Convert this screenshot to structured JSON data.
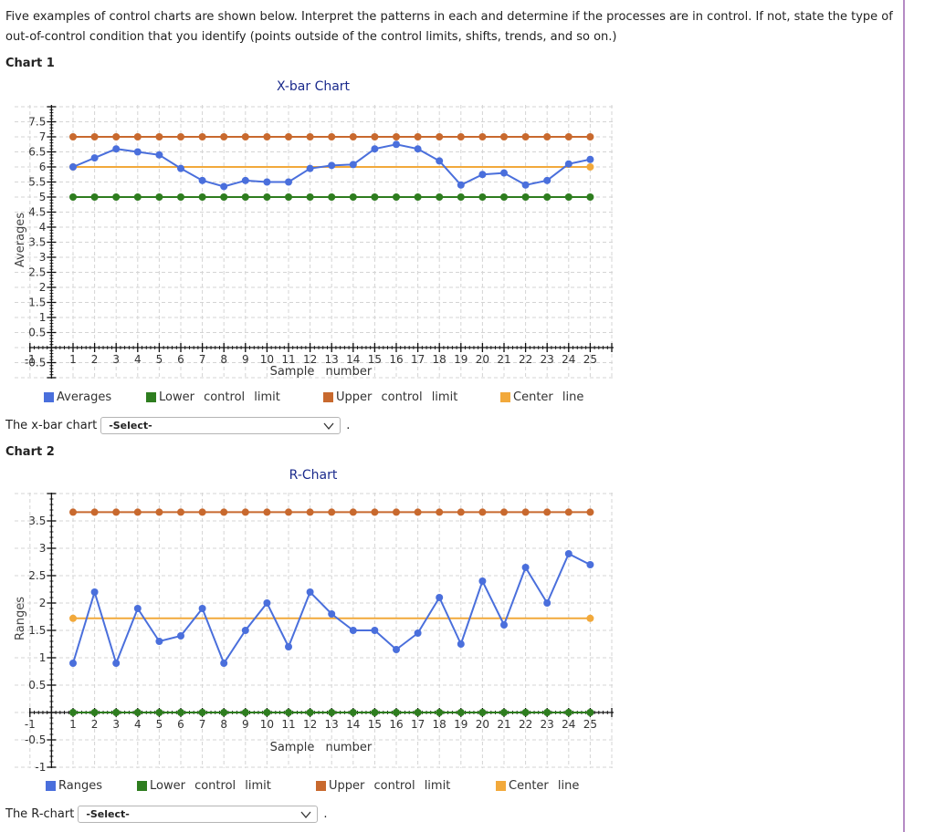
{
  "intro": {
    "text": "Five examples of control charts are shown below. Interpret the patterns in each and determine if the processes are in control. If not, state the type of out-of-control condition that you identify (points outside of the control limits, shifts, trends, and so on.)"
  },
  "chart1": {
    "heading": "Chart 1",
    "answer_prefix": "The x-bar chart",
    "select_value": "-Select-",
    "legend": [
      {
        "label": "Averages",
        "color": "#4a6fdc"
      },
      {
        "label": "Lower control limit",
        "color": "#2e7d1f"
      },
      {
        "label": "Upper control limit",
        "color": "#c8692e"
      },
      {
        "label": "Center line",
        "color": "#f2a93b"
      }
    ]
  },
  "chart2": {
    "heading": "Chart 2",
    "answer_prefix": "The R-chart",
    "select_value": "-Select-",
    "legend": [
      {
        "label": "Ranges",
        "color": "#4a6fdc"
      },
      {
        "label": "Lower control limit",
        "color": "#2e7d1f"
      },
      {
        "label": "Upper control limit",
        "color": "#c8692e"
      },
      {
        "label": "Center line",
        "color": "#f2a93b"
      }
    ]
  },
  "period": ".",
  "chart_data": [
    {
      "type": "line",
      "title": "X-bar Chart",
      "xlabel": "Sample number",
      "ylabel": "Averages",
      "x": [
        1,
        2,
        3,
        4,
        5,
        6,
        7,
        8,
        9,
        10,
        11,
        12,
        13,
        14,
        15,
        16,
        17,
        18,
        19,
        20,
        21,
        22,
        23,
        24,
        25
      ],
      "series": [
        {
          "name": "Averages",
          "color": "#4a6fdc",
          "values": [
            6.0,
            6.3,
            6.6,
            6.5,
            6.4,
            5.95,
            5.55,
            5.35,
            5.55,
            5.5,
            5.5,
            5.95,
            6.05,
            6.08,
            6.6,
            6.75,
            6.6,
            6.2,
            5.4,
            5.75,
            5.8,
            5.4,
            5.55,
            6.1,
            6.25
          ]
        },
        {
          "name": "Lower control limit",
          "color": "#2e7d1f",
          "values": [
            5,
            5,
            5,
            5,
            5,
            5,
            5,
            5,
            5,
            5,
            5,
            5,
            5,
            5,
            5,
            5,
            5,
            5,
            5,
            5,
            5,
            5,
            5,
            5,
            5
          ]
        },
        {
          "name": "Upper control limit",
          "color": "#c8692e",
          "values": [
            7,
            7,
            7,
            7,
            7,
            7,
            7,
            7,
            7,
            7,
            7,
            7,
            7,
            7,
            7,
            7,
            7,
            7,
            7,
            7,
            7,
            7,
            7,
            7,
            7
          ]
        },
        {
          "name": "Center line",
          "color": "#f2a93b",
          "values": [
            6,
            6,
            6,
            6,
            6,
            6,
            6,
            6,
            6,
            6,
            6,
            6,
            6,
            6,
            6,
            6,
            6,
            6,
            6,
            6,
            6,
            6,
            6,
            6,
            6
          ]
        }
      ],
      "xlim": [
        -1,
        26
      ],
      "ylim": [
        -1,
        8
      ],
      "yticks": [
        -0.5,
        0.5,
        1,
        1.5,
        2,
        2.5,
        3,
        3.5,
        4,
        4.5,
        5,
        5.5,
        6,
        6.5,
        7,
        7.5
      ],
      "xticks": [
        -1,
        1,
        2,
        3,
        4,
        5,
        6,
        7,
        8,
        9,
        10,
        11,
        12,
        13,
        14,
        15,
        16,
        17,
        18,
        19,
        20,
        21,
        22,
        23,
        24,
        25
      ],
      "grid": true,
      "legend_position": "bottom"
    },
    {
      "type": "line",
      "title": "R-Chart",
      "xlabel": "Sample number",
      "ylabel": "Ranges",
      "x": [
        1,
        2,
        3,
        4,
        5,
        6,
        7,
        8,
        9,
        10,
        11,
        12,
        13,
        14,
        15,
        16,
        17,
        18,
        19,
        20,
        21,
        22,
        23,
        24,
        25
      ],
      "series": [
        {
          "name": "Ranges",
          "color": "#4a6fdc",
          "values": [
            0.9,
            2.2,
            0.9,
            1.9,
            1.3,
            1.4,
            1.9,
            0.9,
            1.5,
            2.0,
            1.2,
            2.2,
            1.8,
            1.5,
            1.5,
            1.15,
            1.45,
            2.1,
            1.25,
            2.4,
            1.6,
            2.65,
            2.0,
            2.9,
            2.7
          ]
        },
        {
          "name": "Lower control limit",
          "color": "#2e7d1f",
          "values": [
            0,
            0,
            0,
            0,
            0,
            0,
            0,
            0,
            0,
            0,
            0,
            0,
            0,
            0,
            0,
            0,
            0,
            0,
            0,
            0,
            0,
            0,
            0,
            0,
            0
          ]
        },
        {
          "name": "Upper control limit",
          "color": "#c8692e",
          "values": [
            3.66,
            3.66,
            3.66,
            3.66,
            3.66,
            3.66,
            3.66,
            3.66,
            3.66,
            3.66,
            3.66,
            3.66,
            3.66,
            3.66,
            3.66,
            3.66,
            3.66,
            3.66,
            3.66,
            3.66,
            3.66,
            3.66,
            3.66,
            3.66,
            3.66
          ]
        },
        {
          "name": "Center line",
          "color": "#f2a93b",
          "values": [
            1.72,
            1.72,
            1.72,
            1.72,
            1.72,
            1.72,
            1.72,
            1.72,
            1.72,
            1.72,
            1.72,
            1.72,
            1.72,
            1.72,
            1.72,
            1.72,
            1.72,
            1.72,
            1.72,
            1.72,
            1.72,
            1.72,
            1.72,
            1.72,
            1.72
          ]
        }
      ],
      "xlim": [
        -1,
        26
      ],
      "ylim": [
        -1,
        4
      ],
      "yticks": [
        -1,
        -0.5,
        0.5,
        1,
        1.5,
        2,
        2.5,
        3,
        3.5
      ],
      "xticks": [
        -1,
        1,
        2,
        3,
        4,
        5,
        6,
        7,
        8,
        9,
        10,
        11,
        12,
        13,
        14,
        15,
        16,
        17,
        18,
        19,
        20,
        21,
        22,
        23,
        24,
        25
      ],
      "grid": true,
      "legend_position": "bottom"
    }
  ]
}
